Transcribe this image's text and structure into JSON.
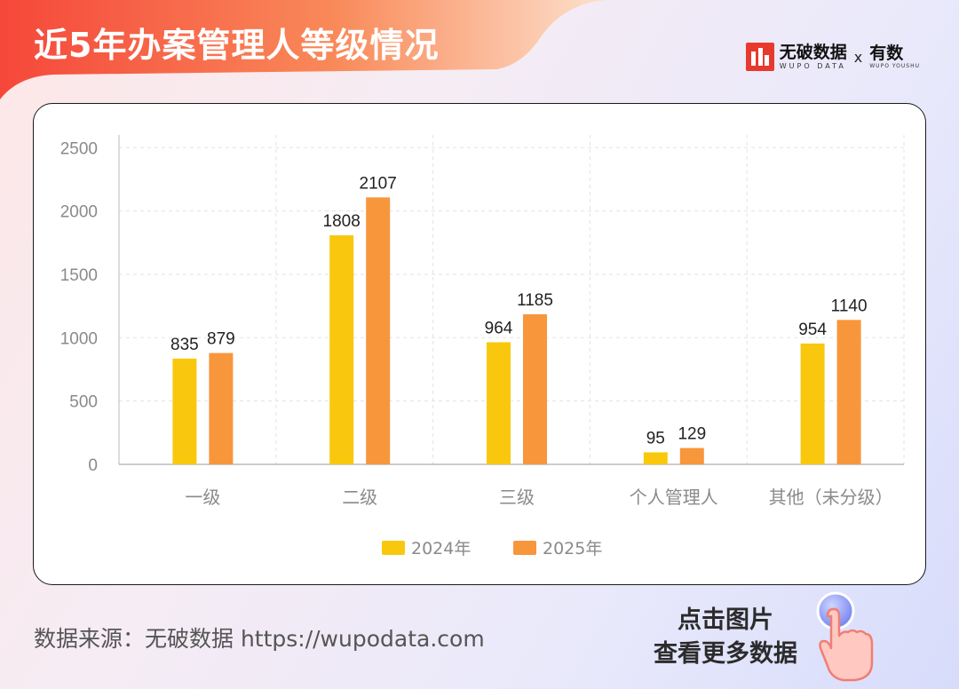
{
  "header": {
    "title": "近5年办案管理人等级情况"
  },
  "brand": {
    "name": "无破数据",
    "sub": "WUPO DATA",
    "separator": "x",
    "partner_name": "有数",
    "partner_sub": "WUPO YOUSHU"
  },
  "footer": {
    "source": "数据来源：无破数据 https://wupodata.com",
    "cta_line1": "点击图片",
    "cta_line2": "查看更多数据"
  },
  "colors": {
    "series_2024": "#f9c80e",
    "series_2025": "#f8963c",
    "title_red": "#f5473a"
  },
  "chart_data": {
    "type": "bar",
    "title": "近5年办案管理人等级情况",
    "categories": [
      "一级",
      "二级",
      "三级",
      "个人管理人",
      "其他（未分级）"
    ],
    "series": [
      {
        "name": "2024年",
        "values": [
          835,
          1808,
          964,
          95,
          954
        ]
      },
      {
        "name": "2025年",
        "values": [
          879,
          2107,
          1185,
          129,
          1140
        ]
      }
    ],
    "yticks": [
      0,
      500,
      1000,
      1500,
      2000,
      2500
    ],
    "ylim": [
      0,
      2600
    ],
    "xlabel": "",
    "ylabel": "",
    "grid": true,
    "legend": "bottom-center"
  }
}
